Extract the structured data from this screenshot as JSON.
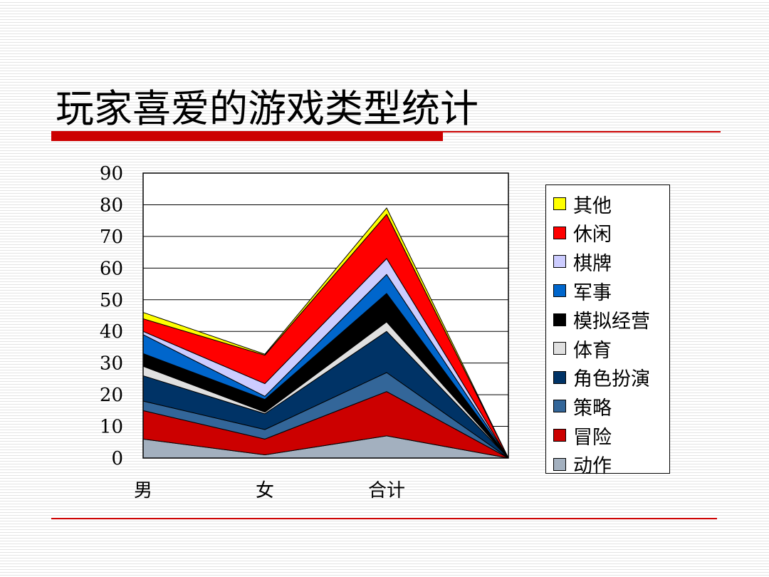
{
  "slide": {
    "title": "玩家喜爱的游戏类型统计"
  },
  "chart_data": {
    "type": "area",
    "stacked": true,
    "categories": [
      "男",
      "女",
      "合计",
      ""
    ],
    "ylim": [
      0,
      90
    ],
    "yticks": [
      "0",
      "10",
      "20",
      "30",
      "40",
      "50",
      "60",
      "70",
      "80",
      "90"
    ],
    "grid": true,
    "legend_position": "right",
    "series": [
      {
        "name": "动作",
        "color": "#a3b0bf",
        "values": [
          6,
          1,
          7,
          0
        ]
      },
      {
        "name": "冒险",
        "color": "#cc0000",
        "values": [
          9,
          5,
          14,
          0
        ]
      },
      {
        "name": "策略",
        "color": "#336699",
        "values": [
          3,
          3,
          6,
          0
        ]
      },
      {
        "name": "角色扮演",
        "color": "#003366",
        "values": [
          8,
          5,
          13,
          0
        ]
      },
      {
        "name": "体育",
        "color": "#e0e0e0",
        "values": [
          3,
          0.5,
          3,
          0
        ]
      },
      {
        "name": "模拟经营",
        "color": "#000000",
        "values": [
          4,
          4,
          9,
          0
        ]
      },
      {
        "name": "军事",
        "color": "#0066cc",
        "values": [
          6,
          1,
          6,
          0
        ]
      },
      {
        "name": "棋牌",
        "color": "#ccccff",
        "values": [
          1,
          4,
          5,
          0
        ]
      },
      {
        "name": "休闲",
        "color": "#ff0000",
        "values": [
          4,
          9,
          14,
          0
        ]
      },
      {
        "name": "其他",
        "color": "#ffff00",
        "values": [
          2,
          0.3,
          2,
          0
        ]
      }
    ]
  }
}
